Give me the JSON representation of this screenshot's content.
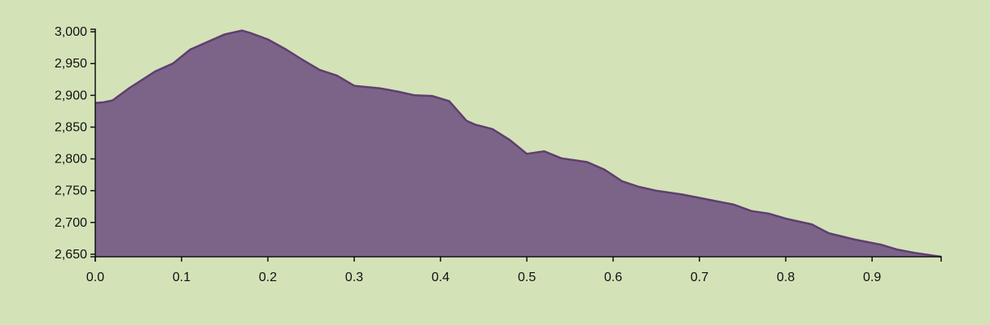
{
  "colors": {
    "background": "#d4e2b8",
    "area_fill": "#7c6489",
    "area_stroke": "#5e3f6e",
    "axis": "#111111"
  },
  "chart_data": {
    "type": "area",
    "title": "",
    "xlabel": "",
    "ylabel": "",
    "xlim": [
      0,
      0.98
    ],
    "ylim": [
      2646,
      3004
    ],
    "grid": false,
    "x_ticks": [
      0.0,
      0.1,
      0.2,
      0.3,
      0.4,
      0.5,
      0.6,
      0.7,
      0.8,
      0.9
    ],
    "x_tick_labels": [
      "0.0",
      "0.1",
      "0.2",
      "0.3",
      "0.4",
      "0.5",
      "0.6",
      "0.7",
      "0.8",
      "0.9"
    ],
    "y_ticks": [
      2650,
      2700,
      2750,
      2800,
      2850,
      2900,
      2950,
      3000
    ],
    "y_tick_labels": [
      "2,650",
      "2,700",
      "2,750",
      "2,800",
      "2,850",
      "2,900",
      "2,950",
      "3,000"
    ],
    "series": [
      {
        "x": [
          0.0,
          0.01,
          0.02,
          0.04,
          0.07,
          0.09,
          0.11,
          0.13,
          0.15,
          0.17,
          0.18,
          0.2,
          0.22,
          0.24,
          0.26,
          0.28,
          0.3,
          0.33,
          0.35,
          0.37,
          0.39,
          0.41,
          0.43,
          0.44,
          0.46,
          0.48,
          0.5,
          0.52,
          0.54,
          0.57,
          0.59,
          0.61,
          0.63,
          0.65,
          0.68,
          0.71,
          0.74,
          0.76,
          0.78,
          0.8,
          0.83,
          0.85,
          0.88,
          0.91,
          0.93,
          0.95,
          0.98
        ],
        "values": [
          2888,
          2889,
          2892,
          2912,
          2938,
          2950,
          2972,
          2984,
          2996,
          3002,
          2998,
          2988,
          2973,
          2956,
          2940,
          2931,
          2915,
          2911,
          2906,
          2900,
          2899,
          2891,
          2860,
          2854,
          2847,
          2830,
          2808,
          2812,
          2801,
          2795,
          2783,
          2765,
          2756,
          2750,
          2744,
          2736,
          2728,
          2718,
          2714,
          2706,
          2697,
          2683,
          2673,
          2665,
          2657,
          2652,
          2646
        ]
      }
    ]
  }
}
